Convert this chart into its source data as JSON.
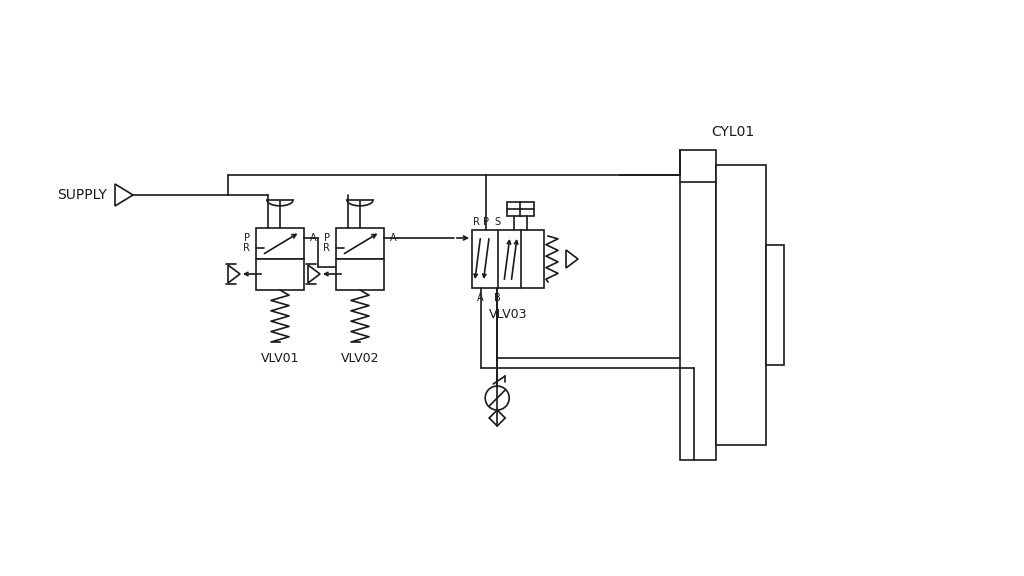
{
  "bg_color": "#e8e8e8",
  "line_color": "#1a1a1a",
  "supply_label": "SUPPLY",
  "vlv01_label": "VLV01",
  "vlv02_label": "VLV02",
  "vlv03_label": "VLV03",
  "cyl01_label": "CYL01",
  "lw": 1.2,
  "font_size": 8.5
}
